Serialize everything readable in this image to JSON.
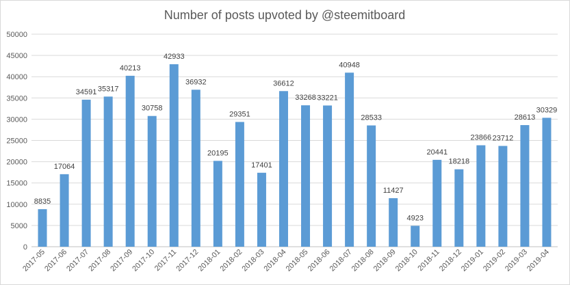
{
  "chart_data": {
    "type": "bar",
    "title": "Number of posts upvoted by @steemitboard",
    "xlabel": "",
    "ylabel": "",
    "ylim": [
      0,
      50000
    ],
    "yticks": [
      0,
      5000,
      10000,
      15000,
      20000,
      25000,
      30000,
      35000,
      40000,
      45000,
      50000
    ],
    "grid": true,
    "legend": "none",
    "bar_color": "#5b9bd5",
    "categories": [
      "2017-05",
      "2017-06",
      "2017-07",
      "2017-08",
      "2017-09",
      "2017-10",
      "2017-11",
      "2017-12",
      "2018-01",
      "2018-02",
      "2018-03",
      "2018-04",
      "2018-05",
      "2018-06",
      "2018-07",
      "2018-08",
      "2018-09",
      "2018-10",
      "2018-11",
      "2018-12",
      "2019-01",
      "2019-02",
      "2019-03",
      "2019-04"
    ],
    "values": [
      8835,
      17064,
      34591,
      35317,
      40213,
      30758,
      42933,
      36932,
      20195,
      29351,
      17401,
      36612,
      33268,
      33221,
      40948,
      28533,
      11427,
      4923,
      20441,
      18218,
      23866,
      23712,
      28613,
      30329
    ]
  }
}
